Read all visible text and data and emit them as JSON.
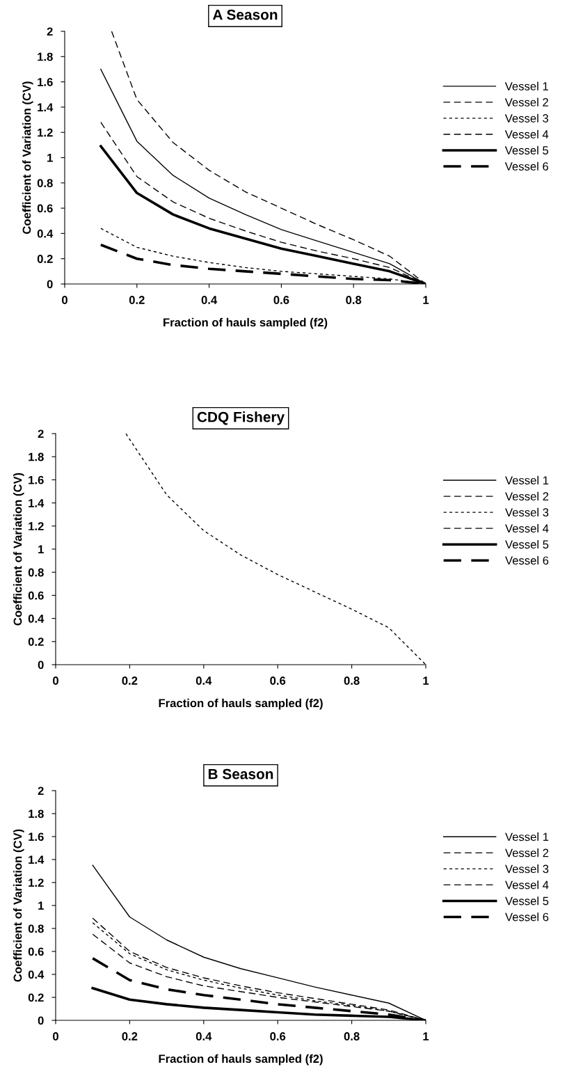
{
  "chart_data": [
    {
      "type": "line",
      "title": "A Season",
      "xlabel": "Fraction of hauls sampled (f2)",
      "ylabel": "Coefficient of Variation (CV)",
      "x": [
        0.1,
        0.2,
        0.3,
        0.4,
        0.5,
        0.6,
        0.7,
        0.8,
        0.9,
        1.0
      ],
      "xlim": [
        0,
        1
      ],
      "xticks": [
        0,
        0.2,
        0.4,
        0.6,
        0.8,
        1
      ],
      "ylim": [
        0,
        2
      ],
      "yticks": [
        0,
        0.2,
        0.4,
        0.6,
        0.8,
        1,
        1.2,
        1.4,
        1.6,
        1.8,
        2
      ],
      "grid": false,
      "legend": "right",
      "marker": "none",
      "series": [
        {
          "name": "Vessel 1",
          "color": "#000000",
          "line_style": "solid",
          "values": [
            1.7,
            1.13,
            0.86,
            0.68,
            0.55,
            0.43,
            0.34,
            0.25,
            0.16,
            0
          ]
        },
        {
          "name": "Vessel 2",
          "color": "#000000",
          "line_style": "dashed",
          "x": [
            0.13,
            0.2,
            0.3,
            0.4,
            0.5,
            0.6,
            0.7,
            0.8,
            0.9,
            1.0
          ],
          "values": [
            2.0,
            1.46,
            1.12,
            0.9,
            0.73,
            0.6,
            0.47,
            0.35,
            0.22,
            0
          ]
        },
        {
          "name": "Vessel 3",
          "color": "#000000",
          "line_style": "dotted",
          "values": [
            0.44,
            0.29,
            0.22,
            0.17,
            0.13,
            0.1,
            0.08,
            0.06,
            0.04,
            0
          ]
        },
        {
          "name": "Vessel 4",
          "color": "#000000",
          "line_style": "dashed",
          "values": [
            1.28,
            0.85,
            0.65,
            0.52,
            0.42,
            0.33,
            0.26,
            0.2,
            0.13,
            0
          ]
        },
        {
          "name": "Vessel 5",
          "color": "#000000",
          "line_style": "solid",
          "values": [
            1.09,
            0.72,
            0.55,
            0.44,
            0.36,
            0.28,
            0.22,
            0.16,
            0.1,
            0
          ]
        },
        {
          "name": "Vessel 6",
          "color": "#000000",
          "line_style": "dashed",
          "values": [
            0.31,
            0.2,
            0.15,
            0.12,
            0.1,
            0.08,
            0.06,
            0.04,
            0.03,
            0
          ]
        }
      ]
    },
    {
      "type": "line",
      "title": "CDQ Fishery",
      "xlabel": "Fraction of hauls sampled (f2)",
      "ylabel": "Coefficient of Variation (CV)",
      "x": [
        0.19,
        0.2,
        0.3,
        0.4,
        0.5,
        0.6,
        0.7,
        0.8,
        0.9,
        1.0
      ],
      "xlim": [
        0,
        1
      ],
      "xticks": [
        0,
        0.2,
        0.4,
        0.6,
        0.8,
        1
      ],
      "ylim": [
        0,
        2
      ],
      "yticks": [
        0,
        0.2,
        0.4,
        0.6,
        0.8,
        1,
        1.2,
        1.4,
        1.6,
        1.8,
        2
      ],
      "grid": false,
      "legend": "right",
      "marker": "none",
      "series": [
        {
          "name": "Vessel 1",
          "color": "#000000",
          "line_style": "solid",
          "values": [
            null,
            null,
            null,
            null,
            null,
            null,
            null,
            null,
            null,
            null
          ]
        },
        {
          "name": "Vessel 2",
          "color": "#000000",
          "line_style": "dashed",
          "values": [
            null,
            null,
            null,
            null,
            null,
            null,
            null,
            null,
            null,
            null
          ]
        },
        {
          "name": "Vessel 3",
          "color": "#000000",
          "line_style": "dotted",
          "values": [
            2.0,
            1.95,
            1.47,
            1.16,
            0.95,
            0.78,
            0.63,
            0.48,
            0.32,
            0
          ]
        },
        {
          "name": "Vessel 4",
          "color": "#000000",
          "line_style": "dashed",
          "values": [
            null,
            null,
            null,
            null,
            null,
            null,
            null,
            null,
            null,
            null
          ]
        },
        {
          "name": "Vessel 5",
          "color": "#000000",
          "line_style": "solid",
          "values": [
            null,
            null,
            null,
            null,
            null,
            null,
            null,
            null,
            null,
            null
          ]
        },
        {
          "name": "Vessel 6",
          "color": "#000000",
          "line_style": "dashed",
          "values": [
            null,
            null,
            null,
            null,
            null,
            null,
            null,
            null,
            null,
            null
          ]
        }
      ]
    },
    {
      "type": "line",
      "title": "B Season",
      "xlabel": "Fraction of hauls sampled (f2)",
      "ylabel": "Coefficient of Variation (CV)",
      "x": [
        0.1,
        0.2,
        0.3,
        0.4,
        0.5,
        0.6,
        0.7,
        0.8,
        0.9,
        1.0
      ],
      "xlim": [
        0,
        1
      ],
      "xticks": [
        0,
        0.2,
        0.4,
        0.6,
        0.8,
        1
      ],
      "ylim": [
        0,
        2
      ],
      "yticks": [
        0,
        0.2,
        0.4,
        0.6,
        0.8,
        1,
        1.2,
        1.4,
        1.6,
        1.8,
        2
      ],
      "grid": false,
      "legend": "right",
      "marker": "none",
      "series": [
        {
          "name": "Vessel 1",
          "color": "#000000",
          "line_style": "solid",
          "values": [
            1.35,
            0.9,
            0.7,
            0.55,
            0.45,
            0.37,
            0.29,
            0.22,
            0.15,
            0
          ]
        },
        {
          "name": "Vessel 2",
          "color": "#000000",
          "line_style": "dashed",
          "values": [
            0.89,
            0.6,
            0.46,
            0.37,
            0.3,
            0.24,
            0.19,
            0.14,
            0.09,
            0
          ]
        },
        {
          "name": "Vessel 3",
          "color": "#000000",
          "line_style": "dotted",
          "values": [
            0.85,
            0.58,
            0.44,
            0.35,
            0.28,
            0.22,
            0.17,
            0.13,
            0.08,
            0
          ]
        },
        {
          "name": "Vessel 4",
          "color": "#000000",
          "line_style": "dashed",
          "values": [
            0.75,
            0.5,
            0.38,
            0.3,
            0.25,
            0.2,
            0.16,
            0.12,
            0.08,
            0
          ]
        },
        {
          "name": "Vessel 5",
          "color": "#000000",
          "line_style": "solid",
          "values": [
            0.28,
            0.18,
            0.14,
            0.11,
            0.09,
            0.07,
            0.05,
            0.04,
            0.03,
            0
          ]
        },
        {
          "name": "Vessel 6",
          "color": "#000000",
          "line_style": "dashed",
          "values": [
            0.54,
            0.35,
            0.27,
            0.22,
            0.18,
            0.14,
            0.11,
            0.08,
            0.05,
            0
          ]
        }
      ]
    }
  ]
}
